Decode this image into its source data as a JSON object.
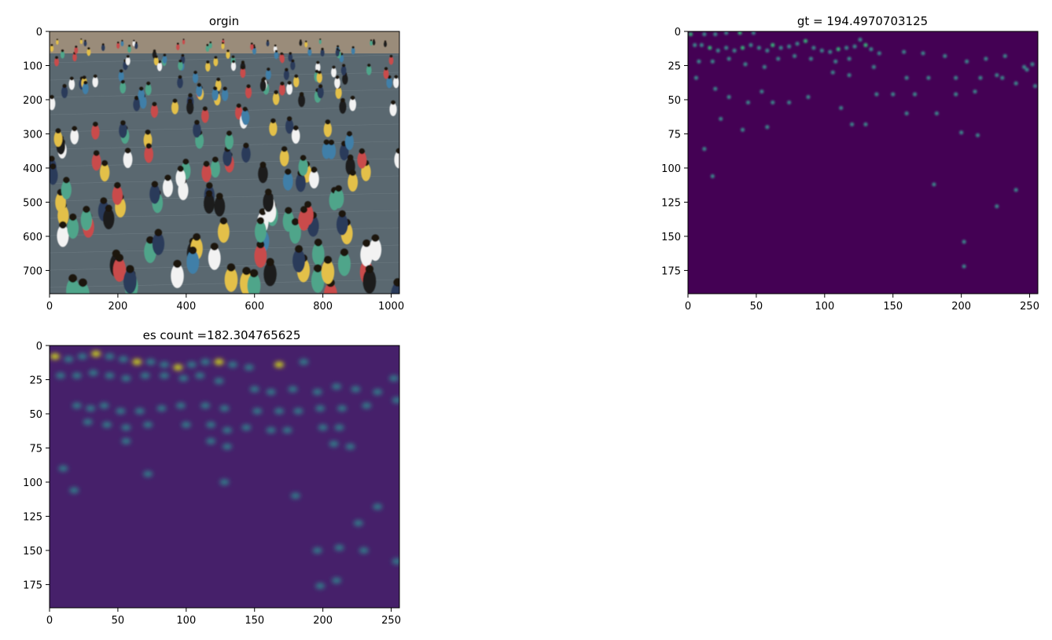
{
  "chart_data": [
    {
      "type": "heatmap",
      "title": "orgin",
      "content": "photo",
      "xlim": [
        0,
        1024
      ],
      "ylim": [
        768,
        0
      ],
      "xticks": [
        0,
        200,
        400,
        600,
        800,
        1000
      ],
      "yticks": [
        0,
        100,
        200,
        300,
        400,
        500,
        600,
        700
      ],
      "colors": {
        "ground": "#5a6870",
        "ground_light": "#7d8b92",
        "building": "#9a8c7a",
        "people": [
          "#f2f2f2",
          "#1a1a1a",
          "#e3c04a",
          "#3f7fa8",
          "#c94c4c",
          "#4fa58a",
          "#2a3a5a"
        ]
      }
    },
    {
      "type": "heatmap",
      "title": "gt = 194.4970703125",
      "content": "density_map",
      "xlim": [
        0,
        256
      ],
      "ylim": [
        192,
        0
      ],
      "xticks": [
        0,
        50,
        100,
        150,
        200,
        250
      ],
      "yticks": [
        0,
        25,
        50,
        75,
        100,
        125,
        150,
        175
      ],
      "colormap": "viridis",
      "background": "#440154",
      "blob_color": "#3b8a8c",
      "blob_hot_color": "#35b779",
      "points": [
        [
          2,
          2
        ],
        [
          12,
          2
        ],
        [
          20,
          2
        ],
        [
          28,
          1
        ],
        [
          38,
          1
        ],
        [
          48,
          1
        ],
        [
          5,
          10
        ],
        [
          10,
          10
        ],
        [
          16,
          12
        ],
        [
          22,
          14
        ],
        [
          28,
          12
        ],
        [
          34,
          14
        ],
        [
          40,
          12
        ],
        [
          46,
          10
        ],
        [
          52,
          12
        ],
        [
          58,
          14
        ],
        [
          62,
          10
        ],
        [
          68,
          12
        ],
        [
          74,
          11
        ],
        [
          80,
          9
        ],
        [
          86,
          7
        ],
        [
          92,
          12
        ],
        [
          98,
          14
        ],
        [
          104,
          15
        ],
        [
          110,
          13
        ],
        [
          116,
          12
        ],
        [
          122,
          11
        ],
        [
          126,
          6
        ],
        [
          130,
          10
        ],
        [
          134,
          13
        ],
        [
          140,
          16
        ],
        [
          158,
          15
        ],
        [
          172,
          16
        ],
        [
          188,
          18
        ],
        [
          204,
          22
        ],
        [
          218,
          20
        ],
        [
          232,
          18
        ],
        [
          246,
          26
        ],
        [
          252,
          24
        ],
        [
          8,
          22
        ],
        [
          18,
          22
        ],
        [
          30,
          20
        ],
        [
          42,
          24
        ],
        [
          56,
          26
        ],
        [
          66,
          20
        ],
        [
          78,
          18
        ],
        [
          90,
          20
        ],
        [
          108,
          22
        ],
        [
          118,
          20
        ],
        [
          136,
          26
        ],
        [
          160,
          34
        ],
        [
          176,
          34
        ],
        [
          196,
          34
        ],
        [
          214,
          34
        ],
        [
          230,
          34
        ],
        [
          248,
          28
        ],
        [
          6,
          34
        ],
        [
          20,
          42
        ],
        [
          30,
          48
        ],
        [
          44,
          52
        ],
        [
          54,
          44
        ],
        [
          62,
          52
        ],
        [
          74,
          52
        ],
        [
          88,
          48
        ],
        [
          106,
          30
        ],
        [
          118,
          32
        ],
        [
          138,
          46
        ],
        [
          150,
          46
        ],
        [
          166,
          46
        ],
        [
          182,
          60
        ],
        [
          196,
          46
        ],
        [
          210,
          44
        ],
        [
          226,
          32
        ],
        [
          240,
          38
        ],
        [
          24,
          64
        ],
        [
          40,
          72
        ],
        [
          58,
          70
        ],
        [
          112,
          56
        ],
        [
          120,
          68
        ],
        [
          130,
          68
        ],
        [
          160,
          60
        ],
        [
          200,
          74
        ],
        [
          212,
          76
        ],
        [
          12,
          86
        ],
        [
          18,
          106
        ],
        [
          180,
          112
        ],
        [
          240,
          116
        ],
        [
          226,
          128
        ],
        [
          202,
          154
        ],
        [
          202,
          172
        ],
        [
          254,
          40
        ]
      ]
    },
    {
      "type": "heatmap",
      "title": "es count =182.304765625",
      "content": "density_map",
      "xlim": [
        0,
        256
      ],
      "ylim": [
        192,
        0
      ],
      "xticks": [
        0,
        50,
        100,
        150,
        200,
        250
      ],
      "yticks": [
        0,
        25,
        50,
        75,
        100,
        125,
        150,
        175
      ],
      "colormap": "viridis",
      "background": "#46206a",
      "blob_color": "#2e8a8e",
      "blob_hot_color": "#d8e219",
      "points": [
        [
          4,
          8
        ],
        [
          14,
          10
        ],
        [
          24,
          8
        ],
        [
          34,
          6
        ],
        [
          44,
          8
        ],
        [
          54,
          10
        ],
        [
          64,
          12
        ],
        [
          74,
          12
        ],
        [
          84,
          14
        ],
        [
          94,
          16
        ],
        [
          104,
          14
        ],
        [
          114,
          12
        ],
        [
          124,
          12
        ],
        [
          134,
          14
        ],
        [
          146,
          16
        ],
        [
          168,
          14
        ],
        [
          186,
          12
        ],
        [
          8,
          22
        ],
        [
          20,
          22
        ],
        [
          32,
          20
        ],
        [
          44,
          22
        ],
        [
          56,
          24
        ],
        [
          70,
          22
        ],
        [
          84,
          22
        ],
        [
          98,
          24
        ],
        [
          110,
          22
        ],
        [
          124,
          26
        ],
        [
          150,
          32
        ],
        [
          162,
          34
        ],
        [
          178,
          32
        ],
        [
          196,
          34
        ],
        [
          210,
          30
        ],
        [
          224,
          32
        ],
        [
          240,
          34
        ],
        [
          252,
          24
        ],
        [
          20,
          44
        ],
        [
          30,
          46
        ],
        [
          40,
          44
        ],
        [
          52,
          48
        ],
        [
          66,
          48
        ],
        [
          82,
          46
        ],
        [
          96,
          44
        ],
        [
          114,
          44
        ],
        [
          128,
          46
        ],
        [
          152,
          48
        ],
        [
          168,
          48
        ],
        [
          182,
          48
        ],
        [
          198,
          46
        ],
        [
          214,
          46
        ],
        [
          232,
          44
        ],
        [
          254,
          40
        ],
        [
          28,
          56
        ],
        [
          42,
          58
        ],
        [
          56,
          60
        ],
        [
          72,
          58
        ],
        [
          100,
          58
        ],
        [
          118,
          58
        ],
        [
          130,
          62
        ],
        [
          144,
          60
        ],
        [
          162,
          62
        ],
        [
          174,
          62
        ],
        [
          200,
          60
        ],
        [
          212,
          60
        ],
        [
          56,
          70
        ],
        [
          118,
          70
        ],
        [
          130,
          74
        ],
        [
          208,
          72
        ],
        [
          220,
          74
        ],
        [
          10,
          90
        ],
        [
          18,
          106
        ],
        [
          72,
          94
        ],
        [
          128,
          100
        ],
        [
          180,
          110
        ],
        [
          240,
          118
        ],
        [
          226,
          130
        ],
        [
          196,
          150
        ],
        [
          212,
          148
        ],
        [
          230,
          150
        ],
        [
          254,
          158
        ],
        [
          198,
          176
        ],
        [
          210,
          172
        ]
      ]
    }
  ]
}
